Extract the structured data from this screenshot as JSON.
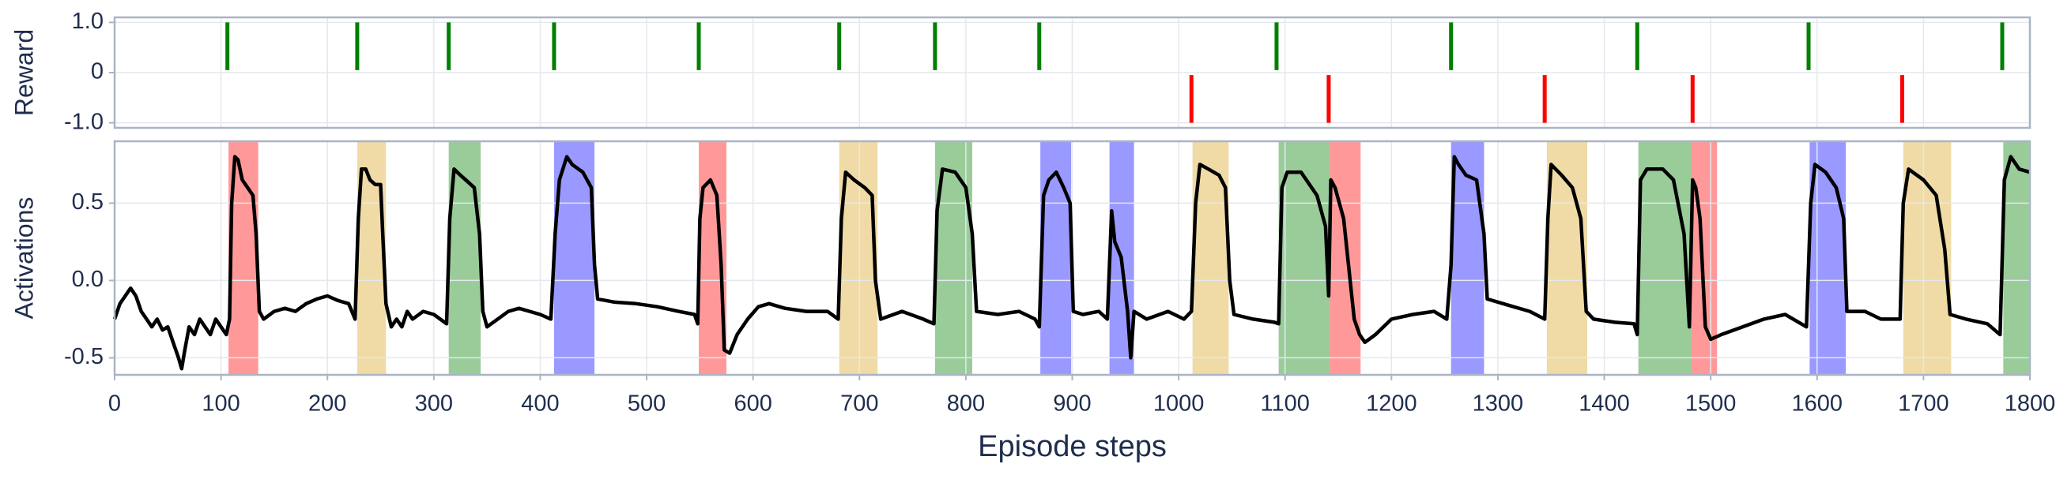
{
  "chart_data": [
    {
      "type": "event",
      "ylabel": "Reward",
      "x": [
        106,
        228,
        314,
        413,
        549,
        681,
        771,
        869,
        1012,
        1092,
        1141,
        1256,
        1344,
        1431,
        1483,
        1592,
        1680,
        1774
      ],
      "values": [
        1,
        1,
        1,
        1,
        1,
        1,
        1,
        1,
        -1,
        1,
        -1,
        1,
        -1,
        1,
        -1,
        1,
        -1,
        1
      ],
      "pos_color": "#008000",
      "neg_color": "#ff0000",
      "xlim": [
        0,
        1800
      ],
      "xticks": [
        0,
        100,
        200,
        300,
        400,
        500,
        600,
        700,
        800,
        900,
        1000,
        1100,
        1200,
        1300,
        1400,
        1500,
        1600,
        1700,
        1800
      ],
      "ylim": [
        -1.1,
        1.1
      ],
      "yticks": [
        {
          "value": 1,
          "label": "1.0"
        },
        0,
        {
          "value": -1,
          "label": "-1.0"
        }
      ],
      "grid": true
    },
    {
      "type": "line",
      "ylabel": "Activations",
      "xlabel": "Episode steps",
      "color": "#000000",
      "spans": [
        {
          "x": [
            107,
            135
          ],
          "color": "#ff0000"
        },
        {
          "x": [
            228,
            255
          ],
          "color": "#daa520"
        },
        {
          "x": [
            314,
            344
          ],
          "color": "#008000"
        },
        {
          "x": [
            413,
            451
          ],
          "color": "#0000ff"
        },
        {
          "x": [
            549,
            575
          ],
          "color": "#ff0000"
        },
        {
          "x": [
            681,
            717
          ],
          "color": "#daa520"
        },
        {
          "x": [
            771,
            806
          ],
          "color": "#008000"
        },
        {
          "x": [
            870,
            899
          ],
          "color": "#0000ff"
        },
        {
          "x": [
            935,
            958
          ],
          "color": "#0000ff"
        },
        {
          "x": [
            1013,
            1047
          ],
          "color": "#daa520"
        },
        {
          "x": [
            1094,
            1142
          ],
          "color": "#008000"
        },
        {
          "x": [
            1142,
            1171
          ],
          "color": "#ff0000"
        },
        {
          "x": [
            1256,
            1287
          ],
          "color": "#0000ff"
        },
        {
          "x": [
            1346,
            1384
          ],
          "color": "#daa520"
        },
        {
          "x": [
            1432,
            1482
          ],
          "color": "#008000"
        },
        {
          "x": [
            1482,
            1506
          ],
          "color": "#ff0000"
        },
        {
          "x": [
            1593,
            1627
          ],
          "color": "#0000ff"
        },
        {
          "x": [
            1681,
            1726
          ],
          "color": "#daa520"
        },
        {
          "x": [
            1775,
            1800
          ],
          "color": "#008000"
        }
      ],
      "x": [
        0,
        5,
        10,
        15,
        20,
        25,
        30,
        35,
        40,
        45,
        50,
        55,
        60,
        63,
        66,
        70,
        75,
        80,
        85,
        90,
        95,
        100,
        105,
        108,
        110,
        113,
        116,
        120,
        125,
        130,
        133,
        136,
        140,
        150,
        160,
        170,
        180,
        190,
        200,
        210,
        220,
        226,
        229,
        232,
        236,
        240,
        245,
        250,
        252,
        255,
        260,
        265,
        270,
        275,
        280,
        290,
        300,
        312,
        315,
        319,
        325,
        330,
        338,
        343,
        346,
        350,
        360,
        370,
        380,
        390,
        400,
        410,
        414,
        418,
        425,
        430,
        440,
        448,
        451,
        454,
        470,
        490,
        510,
        530,
        545,
        548,
        550,
        553,
        560,
        566,
        570,
        573,
        578,
        585,
        595,
        605,
        615,
        630,
        650,
        670,
        680,
        683,
        687,
        695,
        705,
        712,
        715,
        720,
        740,
        760,
        770,
        773,
        778,
        790,
        800,
        806,
        810,
        830,
        850,
        865,
        869,
        873,
        878,
        885,
        892,
        898,
        901,
        910,
        925,
        933,
        937,
        940,
        946,
        952,
        955,
        958,
        970,
        990,
        1005,
        1012,
        1016,
        1020,
        1028,
        1038,
        1044,
        1048,
        1052,
        1070,
        1090,
        1094,
        1097,
        1102,
        1115,
        1130,
        1138,
        1141,
        1143,
        1147,
        1155,
        1165,
        1170,
        1175,
        1185,
        1200,
        1220,
        1240,
        1252,
        1256,
        1259,
        1263,
        1270,
        1280,
        1287,
        1290,
        1310,
        1330,
        1344,
        1347,
        1350,
        1360,
        1370,
        1378,
        1383,
        1390,
        1410,
        1428,
        1431,
        1434,
        1440,
        1455,
        1465,
        1475,
        1480,
        1483,
        1486,
        1490,
        1495,
        1500,
        1510,
        1530,
        1550,
        1570,
        1590,
        1594,
        1598,
        1608,
        1618,
        1625,
        1628,
        1645,
        1660,
        1678,
        1681,
        1686,
        1700,
        1712,
        1720,
        1725,
        1740,
        1760,
        1772,
        1776,
        1782,
        1790,
        1800
      ],
      "values": [
        -0.25,
        -0.15,
        -0.1,
        -0.05,
        -0.1,
        -0.2,
        -0.25,
        -0.3,
        -0.25,
        -0.32,
        -0.3,
        -0.4,
        -0.5,
        -0.57,
        -0.45,
        -0.3,
        -0.35,
        -0.25,
        -0.3,
        -0.35,
        -0.25,
        -0.3,
        -0.35,
        -0.25,
        0.5,
        0.8,
        0.78,
        0.65,
        0.6,
        0.55,
        0.3,
        -0.2,
        -0.25,
        -0.2,
        -0.18,
        -0.2,
        -0.15,
        -0.12,
        -0.1,
        -0.13,
        -0.15,
        -0.25,
        0.4,
        0.72,
        0.72,
        0.65,
        0.62,
        0.62,
        0.3,
        -0.15,
        -0.3,
        -0.25,
        -0.3,
        -0.2,
        -0.25,
        -0.2,
        -0.22,
        -0.28,
        0.4,
        0.72,
        0.68,
        0.65,
        0.6,
        0.3,
        -0.2,
        -0.3,
        -0.25,
        -0.2,
        -0.18,
        -0.2,
        -0.22,
        -0.25,
        0.3,
        0.65,
        0.8,
        0.75,
        0.7,
        0.6,
        0.1,
        -0.12,
        -0.14,
        -0.15,
        -0.17,
        -0.2,
        -0.22,
        -0.28,
        0.4,
        0.6,
        0.65,
        0.55,
        0.1,
        -0.45,
        -0.47,
        -0.35,
        -0.25,
        -0.17,
        -0.15,
        -0.18,
        -0.2,
        -0.2,
        -0.25,
        0.4,
        0.7,
        0.65,
        0.6,
        0.55,
        0.0,
        -0.25,
        -0.2,
        -0.25,
        -0.28,
        0.45,
        0.72,
        0.7,
        0.6,
        0.3,
        -0.2,
        -0.22,
        -0.2,
        -0.25,
        -0.3,
        0.55,
        0.65,
        0.7,
        0.6,
        0.5,
        -0.2,
        -0.22,
        -0.2,
        -0.25,
        0.45,
        0.25,
        0.15,
        -0.2,
        -0.5,
        -0.2,
        -0.25,
        -0.2,
        -0.25,
        -0.2,
        0.5,
        0.75,
        0.72,
        0.68,
        0.6,
        0.0,
        -0.22,
        -0.25,
        -0.27,
        -0.28,
        0.6,
        0.7,
        0.7,
        0.55,
        0.35,
        -0.1,
        0.65,
        0.6,
        0.4,
        -0.25,
        -0.35,
        -0.4,
        -0.35,
        -0.25,
        -0.22,
        -0.2,
        -0.25,
        0.1,
        0.8,
        0.75,
        0.68,
        0.65,
        0.3,
        -0.12,
        -0.16,
        -0.2,
        -0.25,
        0.4,
        0.75,
        0.68,
        0.6,
        0.4,
        -0.2,
        -0.25,
        -0.27,
        -0.28,
        -0.35,
        0.65,
        0.72,
        0.72,
        0.65,
        0.3,
        -0.3,
        0.65,
        0.6,
        0.4,
        -0.3,
        -0.38,
        -0.35,
        -0.3,
        -0.25,
        -0.22,
        -0.3,
        0.5,
        0.75,
        0.7,
        0.6,
        0.4,
        -0.2,
        -0.2,
        -0.25,
        -0.25,
        0.5,
        0.72,
        0.65,
        0.55,
        0.2,
        -0.22,
        -0.25,
        -0.28,
        -0.35,
        0.65,
        0.8,
        0.72,
        0.7
      ],
      "xlim": [
        0,
        1800
      ],
      "xticks": [
        0,
        100,
        200,
        300,
        400,
        500,
        600,
        700,
        800,
        900,
        1000,
        1100,
        1200,
        1300,
        1400,
        1500,
        1600,
        1700,
        1800
      ],
      "ylim": [
        -0.61,
        0.9
      ],
      "yticks": [
        0.5,
        {
          "value": 0,
          "label": "0.0"
        },
        -0.5
      ],
      "grid": true
    }
  ]
}
